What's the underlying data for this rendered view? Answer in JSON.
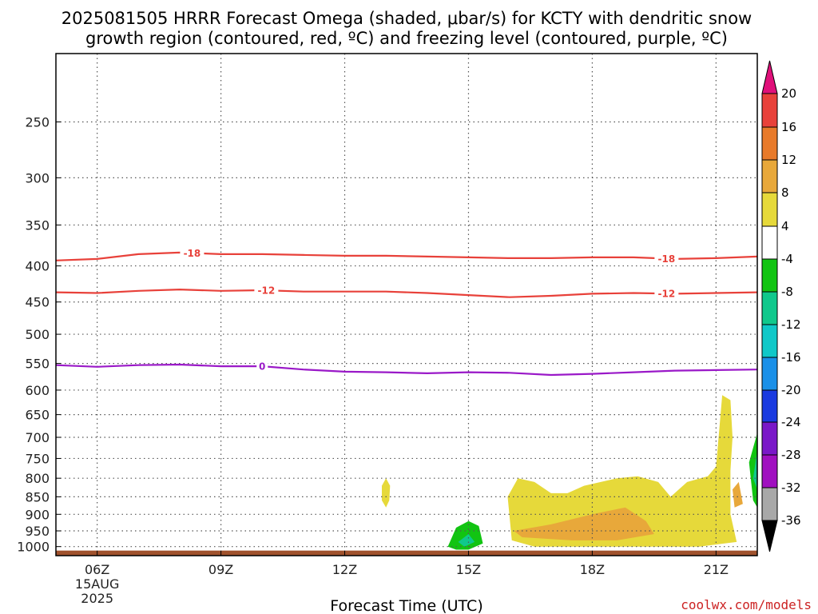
{
  "title": {
    "line1": "2025081505 HRRR Forecast Omega (shaded, μbar/s) for KCTY with dendritic snow",
    "line2": "growth region (contoured, red, ºC) and freezing level (contoured, purple, ºC)"
  },
  "credit": "coolwx.com/models",
  "chart_data": {
    "type": "time-height cross-section",
    "title": "2025081505 HRRR Forecast Omega (shaded, μbar/s) for KCTY with dendritic snow growth region (contoured, red, ºC) and freezing level (contoured, purple, ºC)",
    "xlabel": "Forecast Time (UTC)",
    "ylabel": "",
    "x_ticks": [
      {
        "hour": 6,
        "label": "06Z",
        "sub1": "15AUG",
        "sub2": "2025"
      },
      {
        "hour": 9,
        "label": "09Z"
      },
      {
        "hour": 12,
        "label": "12Z"
      },
      {
        "hour": 15,
        "label": "15Z"
      },
      {
        "hour": 18,
        "label": "18Z"
      },
      {
        "hour": 21,
        "label": "21Z"
      }
    ],
    "xlim": [
      5,
      22
    ],
    "y_levels_hpa": [
      250,
      300,
      350,
      400,
      450,
      500,
      550,
      600,
      650,
      700,
      750,
      800,
      850,
      900,
      950,
      1000
    ],
    "ylim_hpa": [
      200,
      1030
    ],
    "y_scale": "log-pressure",
    "grid": "dotted",
    "contours": [
      {
        "name": "-18 ºC",
        "label": "-18",
        "color": "#e8413a",
        "points": [
          [
            5,
            393
          ],
          [
            6,
            391
          ],
          [
            7,
            385
          ],
          [
            8,
            383
          ],
          [
            9,
            385
          ],
          [
            10,
            385
          ],
          [
            11,
            386
          ],
          [
            12,
            387
          ],
          [
            13,
            387
          ],
          [
            14,
            388
          ],
          [
            15,
            389
          ],
          [
            16,
            390
          ],
          [
            17,
            390
          ],
          [
            18,
            389
          ],
          [
            19,
            389
          ],
          [
            20,
            391
          ],
          [
            21,
            390
          ],
          [
            22,
            388
          ]
        ],
        "label_hours": [
          8.3,
          19.8
        ]
      },
      {
        "name": "-12 ºC",
        "label": "-12",
        "color": "#e8413a",
        "points": [
          [
            5,
            436
          ],
          [
            6,
            437
          ],
          [
            7,
            434
          ],
          [
            8,
            432
          ],
          [
            9,
            434
          ],
          [
            10,
            433
          ],
          [
            11,
            435
          ],
          [
            12,
            435
          ],
          [
            13,
            435
          ],
          [
            14,
            437
          ],
          [
            15,
            440
          ],
          [
            16,
            443
          ],
          [
            17,
            441
          ],
          [
            18,
            438
          ],
          [
            19,
            437
          ],
          [
            20,
            438
          ],
          [
            21,
            437
          ],
          [
            22,
            436
          ]
        ],
        "label_hours": [
          10.1,
          19.8
        ]
      },
      {
        "name": "0 ºC",
        "label": "0",
        "color": "#9a19c8",
        "points": [
          [
            5,
            553
          ],
          [
            6,
            556
          ],
          [
            7,
            553
          ],
          [
            8,
            552
          ],
          [
            9,
            555
          ],
          [
            10,
            555
          ],
          [
            11,
            561
          ],
          [
            12,
            565
          ],
          [
            13,
            566
          ],
          [
            14,
            568
          ],
          [
            15,
            566
          ],
          [
            16,
            567
          ],
          [
            17,
            571
          ],
          [
            18,
            569
          ],
          [
            19,
            566
          ],
          [
            20,
            563
          ],
          [
            21,
            562
          ],
          [
            22,
            561
          ]
        ],
        "label_hours": [
          10.0
        ]
      }
    ],
    "omega_regions": [
      {
        "category": "4 to 8",
        "color": "#e6d93a",
        "description": "broad upward-motion area 16Z-22Z, 600-1000 hPa"
      },
      {
        "category": "8 to 12",
        "color": "#e8a83a",
        "description": "core 16Z-20Z near 900-960 hPa and near 22Z 820 hPa"
      },
      {
        "category": "-8 to -4",
        "color": "#12c412",
        "description": "small area near 15Z, 930-1000 hPa and at right edge 700-870 hPa"
      },
      {
        "category": "-12 to -8",
        "color": "#10c88c",
        "description": "center of green areas"
      }
    ],
    "colorbar": {
      "labels": [
        "20",
        "16",
        "12",
        "8",
        "4",
        "-4",
        "-8",
        "-12",
        "-16",
        "-20",
        "-24",
        "-28",
        "-32",
        "-36"
      ],
      "colors": [
        "#e8413a",
        "#e87a2a",
        "#e8a83a",
        "#e6d93a",
        "#ffffff",
        "#12c412",
        "#10c88c",
        "#10c8c8",
        "#1a90e8",
        "#1a3ae0",
        "#7a18c8",
        "#a010c0",
        "#a8a8a8"
      ],
      "top_arrow_color": "#e0107a",
      "bottom_arrow_color": "#000000"
    }
  }
}
